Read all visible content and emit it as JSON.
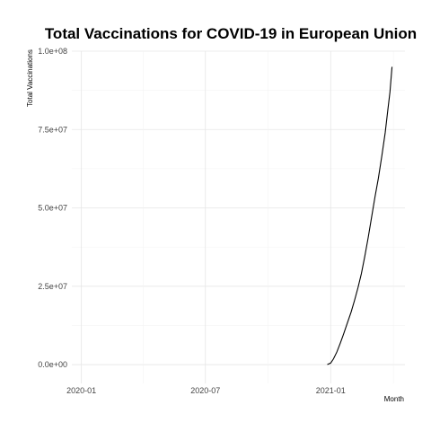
{
  "chart_data": {
    "type": "line",
    "title": "Total Vaccinations for COVID-19 in European Union",
    "xlabel": "Month",
    "ylabel": "Total Vaccinations",
    "x_type": "date",
    "xlim": [
      "2019-12-18",
      "2021-04-20"
    ],
    "ylim": [
      -6000000,
      100000000
    ],
    "x_ticks": [
      {
        "value": "2020-01-01",
        "label": "2020-01"
      },
      {
        "value": "2020-07-01",
        "label": "2020-07"
      },
      {
        "value": "2021-01-01",
        "label": "2021-01"
      }
    ],
    "y_ticks": [
      {
        "value": 0,
        "label": "0.0e+00"
      },
      {
        "value": 25000000,
        "label": "2.5e+07"
      },
      {
        "value": 50000000,
        "label": "5.0e+07"
      },
      {
        "value": 75000000,
        "label": "7.5e+07"
      },
      {
        "value": 100000000,
        "label": "1.0e+08"
      }
    ],
    "grid": true,
    "legend": "none",
    "color": "#000000",
    "series": [
      {
        "x": [
          "2020-12-27",
          "2021-01-01",
          "2021-01-05",
          "2021-01-10",
          "2021-01-15",
          "2021-01-20",
          "2021-01-25",
          "2021-01-31",
          "2021-02-05",
          "2021-02-10",
          "2021-02-15",
          "2021-02-20",
          "2021-02-25",
          "2021-03-02",
          "2021-03-07",
          "2021-03-12",
          "2021-03-17",
          "2021-03-22",
          "2021-03-26",
          "2021-03-29",
          "2021-04-01"
        ],
        "values": [
          0,
          500000,
          1800000,
          4000000,
          6800000,
          9800000,
          13000000,
          16800000,
          20500000,
          24500000,
          29000000,
          34500000,
          40500000,
          47000000,
          53500000,
          59500000,
          66500000,
          74000000,
          81500000,
          87000000,
          95000000
        ]
      }
    ]
  }
}
